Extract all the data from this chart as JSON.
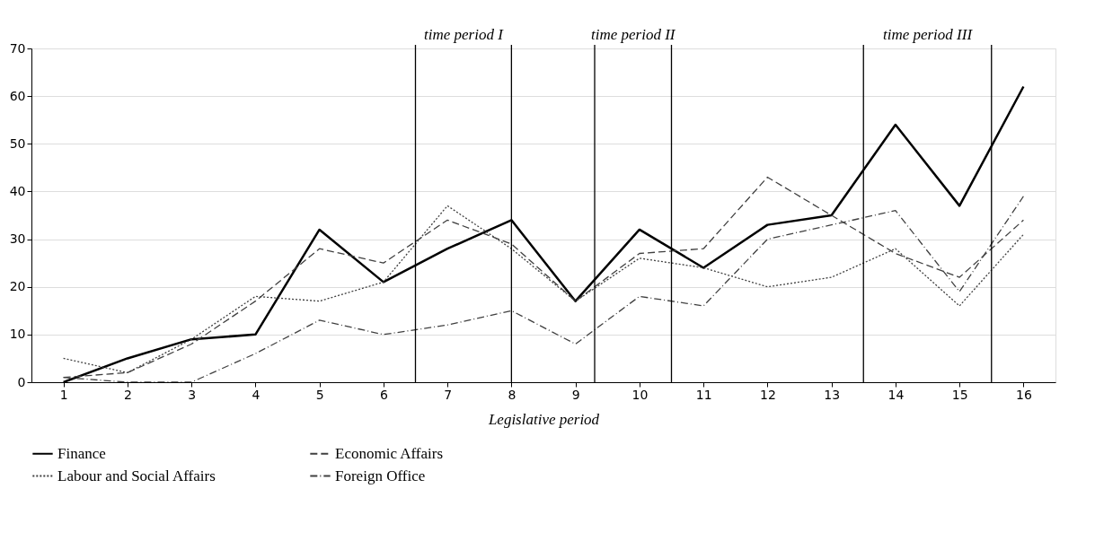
{
  "chart_data": {
    "type": "line",
    "xlabel": "Legislative period",
    "x": [
      1,
      2,
      3,
      4,
      5,
      6,
      7,
      8,
      9,
      10,
      11,
      12,
      13,
      14,
      15,
      16
    ],
    "xlim": [
      0.5,
      16.5
    ],
    "xticks": [
      1,
      2,
      3,
      4,
      5,
      6,
      7,
      8,
      9,
      10,
      11,
      12,
      13,
      14,
      15,
      16
    ],
    "ylim": [
      0,
      70
    ],
    "yticks": [
      0,
      10,
      20,
      30,
      40,
      50,
      60,
      70
    ],
    "grid": "y",
    "legend": "bottom",
    "series": [
      {
        "name": "Finance",
        "color": "#000000",
        "line_style": "solid",
        "values": [
          0,
          5,
          9,
          10,
          32,
          21,
          28,
          34,
          17,
          32,
          24,
          33,
          35,
          54,
          37,
          62
        ]
      },
      {
        "name": "Economic Affairs",
        "color": "#404040",
        "line_style": "dashed",
        "values": [
          1,
          2,
          8,
          17,
          28,
          25,
          34,
          29,
          17,
          27,
          28,
          43,
          35,
          27,
          22,
          34
        ]
      },
      {
        "name": "Labour and Social Affairs",
        "color": "#404040",
        "line_style": "dotted",
        "values": [
          5,
          2,
          9,
          18,
          17,
          21,
          37,
          28,
          17,
          26,
          24,
          20,
          22,
          28,
          16,
          31
        ]
      },
      {
        "name": "Foreign Office",
        "color": "#404040",
        "line_style": "dashdot",
        "values": [
          1,
          0,
          0,
          6,
          13,
          10,
          12,
          15,
          8,
          18,
          16,
          30,
          33,
          36,
          19,
          39
        ]
      }
    ],
    "ref_lines": [
      {
        "axis": "x",
        "value": 6.5
      },
      {
        "axis": "x",
        "value": 8.0
      },
      {
        "axis": "x",
        "value": 9.3
      },
      {
        "axis": "x",
        "value": 10.5
      },
      {
        "axis": "x",
        "value": 13.5
      },
      {
        "axis": "x",
        "value": 15.5
      }
    ],
    "annotations": [
      "time period I",
      "time period II",
      "time period III"
    ]
  }
}
